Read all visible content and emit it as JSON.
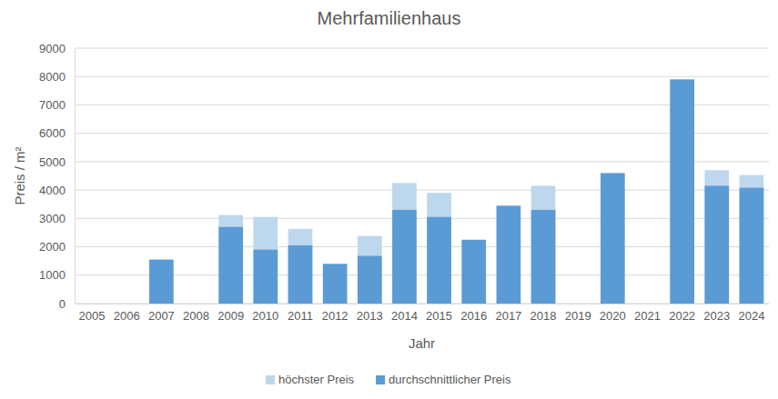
{
  "chart_data": {
    "type": "bar",
    "title": "Mehrfamilienhaus",
    "x_label": "Jahr",
    "y_label": "Preis / m²",
    "categories": [
      "2005",
      "2006",
      "2007",
      "2008",
      "2009",
      "2010",
      "2011",
      "2012",
      "2013",
      "2014",
      "2015",
      "2016",
      "2017",
      "2018",
      "2019",
      "2020",
      "2021",
      "2022",
      "2023",
      "2024"
    ],
    "series": [
      {
        "name": "höchster Preis",
        "color": "#bdd7ee",
        "values": [
          null,
          null,
          null,
          null,
          3120,
          3050,
          2630,
          null,
          2380,
          4250,
          3900,
          null,
          null,
          4150,
          null,
          null,
          null,
          null,
          4700,
          4530
        ]
      },
      {
        "name": "durchschnittlicher Preis",
        "color": "#5b9bd5",
        "values": [
          null,
          null,
          1550,
          null,
          2700,
          1900,
          2050,
          1400,
          1680,
          3300,
          3050,
          2250,
          3450,
          3300,
          null,
          4600,
          null,
          7900,
          4150,
          4080
        ]
      }
    ],
    "ylim": [
      0,
      9000
    ],
    "yticks": [
      0,
      1000,
      2000,
      3000,
      4000,
      5000,
      6000,
      7000,
      8000,
      9000
    ],
    "grid": true,
    "legend": "bottom"
  }
}
